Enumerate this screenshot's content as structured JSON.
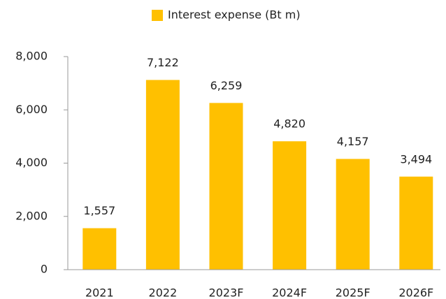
{
  "chart_data": {
    "type": "bar",
    "categories": [
      "2021",
      "2022",
      "2023F",
      "2024F",
      "2025F",
      "2026F"
    ],
    "series": [
      {
        "name": "Interest expense (Bt m)",
        "color": "#FFC000",
        "values": [
          1557,
          7122,
          6259,
          4820,
          4157,
          3494
        ],
        "value_labels": [
          "1,557",
          "7,122",
          "6,259",
          "4,820",
          "4,157",
          "3,494"
        ]
      }
    ],
    "ylim": [
      0,
      8000
    ],
    "yticks": [
      0,
      {
        "value": 2000,
        "label": "2,000"
      },
      {
        "value": 4000,
        "label": "4,000"
      },
      {
        "value": 6000,
        "label": "6,000"
      },
      {
        "value": 8000,
        "label": "8,000"
      }
    ],
    "grid": false,
    "legend": "top"
  }
}
